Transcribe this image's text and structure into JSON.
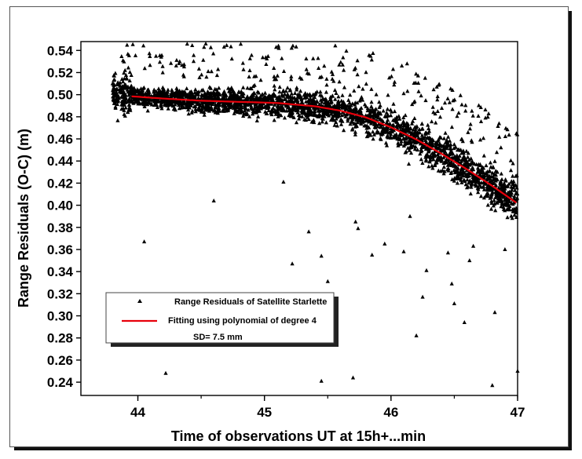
{
  "chart_data": {
    "type": "scatter",
    "xlabel": "Time of observations UT at 15h+...min",
    "ylabel": "Range Residuals (O-C) (m)",
    "xlim": [
      43.55,
      47.0
    ],
    "ylim": [
      0.228,
      0.548
    ],
    "xticks": [
      "44",
      "45",
      "46",
      "47"
    ],
    "yticks": [
      "0.24",
      "0.26",
      "0.28",
      "0.30",
      "0.32",
      "0.34",
      "0.36",
      "0.38",
      "0.40",
      "0.42",
      "0.44",
      "0.46",
      "0.48",
      "0.50",
      "0.52",
      "0.54"
    ],
    "grid": false,
    "legend_position": "bottom-left",
    "series": [
      {
        "name": "Range Residuals of Satellite Starlette",
        "marker": "triangle",
        "color": "#000000",
        "band_note": "dense band of points following the fit, spread ~±0.02 m",
        "outliers": [
          [
            44.05,
            0.367
          ],
          [
            44.22,
            0.248
          ],
          [
            44.6,
            0.404
          ],
          [
            45.15,
            0.421
          ],
          [
            45.22,
            0.347
          ],
          [
            45.35,
            0.376
          ],
          [
            45.45,
            0.354
          ],
          [
            45.5,
            0.331
          ],
          [
            45.45,
            0.241
          ],
          [
            45.7,
            0.244
          ],
          [
            45.72,
            0.385
          ],
          [
            45.74,
            0.379
          ],
          [
            45.85,
            0.355
          ],
          [
            46.1,
            0.358
          ],
          [
            46.2,
            0.282
          ],
          [
            46.25,
            0.317
          ],
          [
            46.28,
            0.341
          ],
          [
            46.45,
            0.357
          ],
          [
            46.48,
            0.329
          ],
          [
            46.5,
            0.311
          ],
          [
            46.58,
            0.294
          ],
          [
            46.65,
            0.363
          ],
          [
            46.8,
            0.237
          ],
          [
            46.82,
            0.303
          ],
          [
            47.0,
            0.25
          ],
          [
            46.15,
            0.39
          ],
          [
            45.95,
            0.365
          ],
          [
            46.62,
            0.35
          ],
          [
            46.9,
            0.36
          ]
        ]
      },
      {
        "name": "Fitting using polynomial of degree 4",
        "color": "#e8000b",
        "x": [
          43.95,
          44.2,
          44.5,
          44.8,
          45.1,
          45.4,
          45.6,
          45.8,
          46.0,
          46.2,
          46.4,
          46.6,
          46.8,
          47.0
        ],
        "y": [
          0.4985,
          0.4965,
          0.4945,
          0.4935,
          0.4925,
          0.4895,
          0.4855,
          0.4795,
          0.4705,
          0.4595,
          0.4465,
          0.4325,
          0.4175,
          0.4015
        ]
      }
    ],
    "annotations": [
      "SD= 7.5 mm"
    ]
  }
}
